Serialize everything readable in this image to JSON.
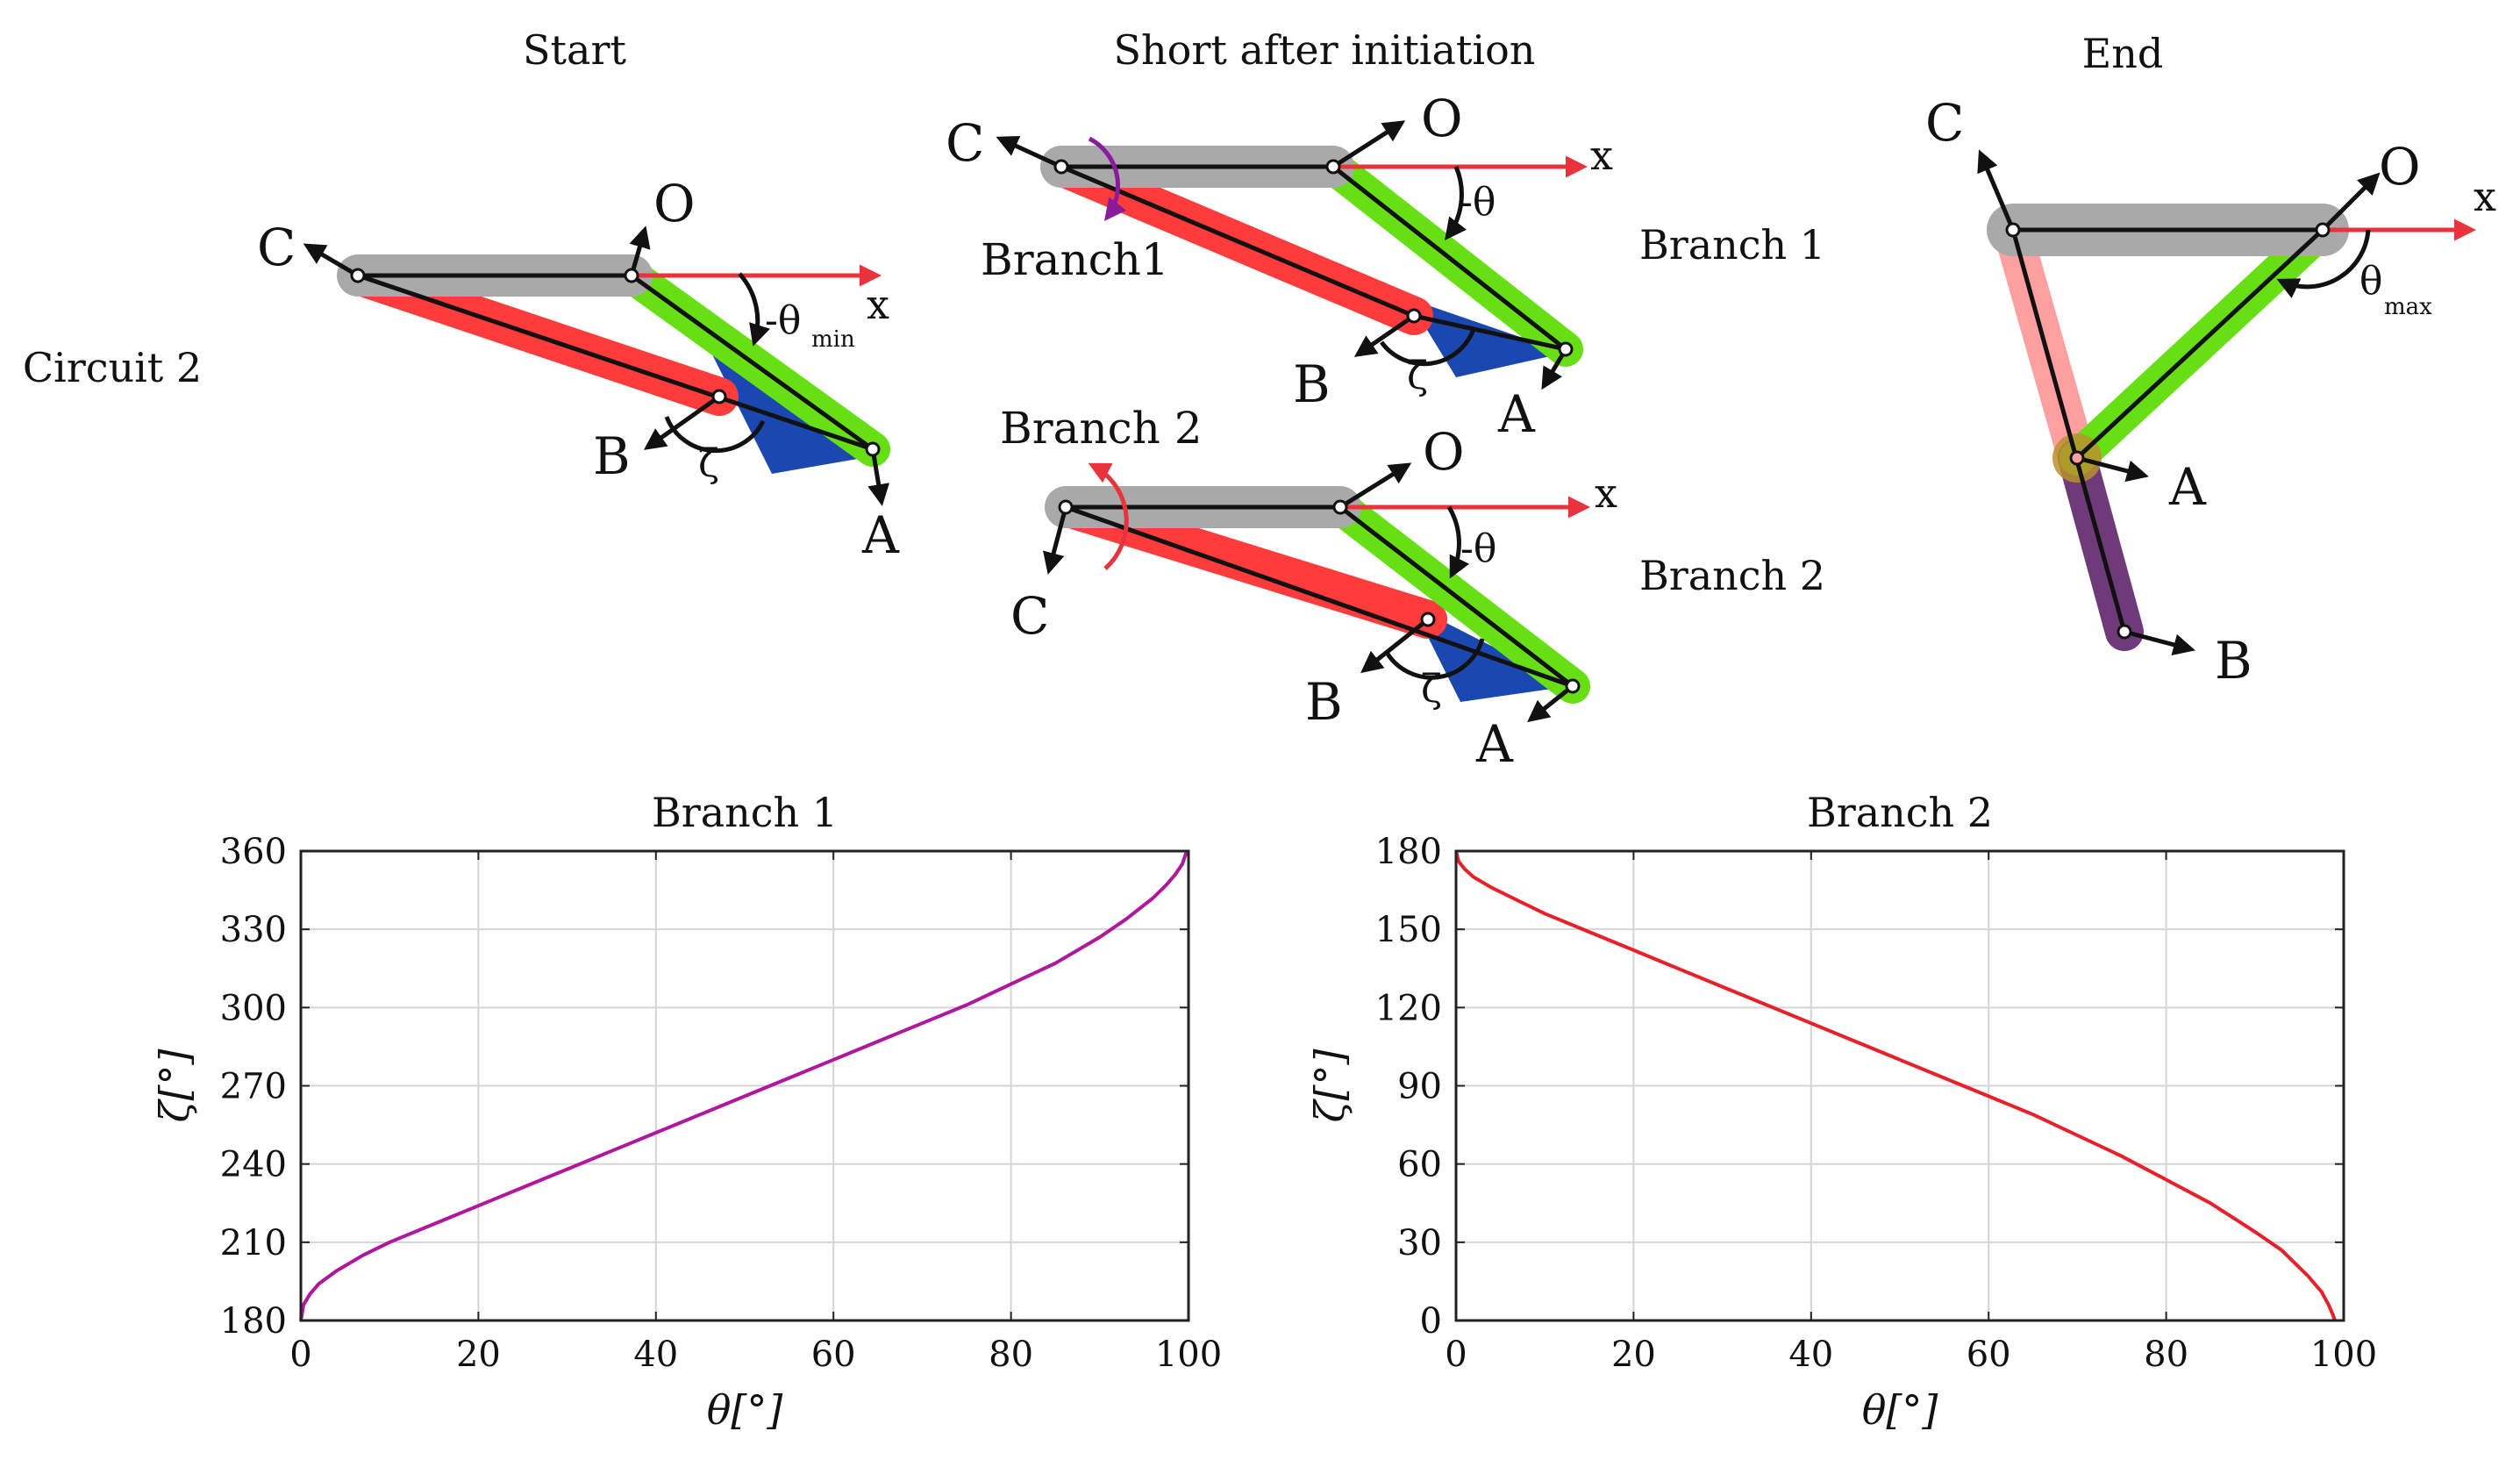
{
  "titles": {
    "start": "Start",
    "short": "Short after initiation",
    "end": "End"
  },
  "side_labels": {
    "circuit": "Circuit 2",
    "branch1": "Branch 1",
    "branch2": "Branch 2"
  },
  "annotations": {
    "branch1_arrow": "Branch1",
    "branch2_arrow": "Branch 2",
    "neg_theta": "-θ",
    "theta": "θ",
    "sub_min": "min",
    "sub_max": "max",
    "zeta": "ζ",
    "x_axis": "x"
  },
  "points": {
    "A": "A",
    "B": "B",
    "C": "C",
    "O": "O"
  },
  "colors": {
    "red_link": "#ff3b3b",
    "green_link": "#66e014",
    "gray_link": "#a9a9a9",
    "blue_wedge": "#1a47b0",
    "axis_red": "#e8333d",
    "purple": "#8a1c9c",
    "pink_link": "#ff9f9f",
    "dark_purple": "#6f3a7a"
  },
  "chart_data": [
    {
      "type": "line",
      "title": "Branch 1",
      "xlabel": "θ[°]",
      "ylabel": "ζ[°]",
      "xlim": [
        0,
        100
      ],
      "ylim": [
        180,
        360
      ],
      "xticks": [
        0,
        20,
        40,
        60,
        80,
        100
      ],
      "yticks": [
        180,
        210,
        240,
        270,
        300,
        330,
        360
      ],
      "grid": true,
      "color": "#b0179d",
      "x": [
        0,
        0.3,
        1,
        2,
        4,
        7,
        10,
        15,
        20,
        25,
        30,
        35,
        40,
        45,
        50,
        55,
        60,
        65,
        70,
        75,
        80,
        85,
        90,
        93,
        96,
        97.5,
        98.5,
        99.3,
        99.7,
        100
      ],
      "y": [
        180,
        186,
        190,
        194,
        199,
        205,
        210,
        217,
        224,
        231,
        238,
        245,
        252,
        259,
        266,
        273,
        280,
        287,
        294,
        301,
        309,
        317,
        327,
        334,
        342,
        347,
        351,
        355,
        359,
        360
      ]
    },
    {
      "type": "line",
      "title": "Branch 2",
      "xlabel": "θ[°]",
      "ylabel": "ζ[°]",
      "xlim": [
        0,
        100
      ],
      "ylim": [
        0,
        180
      ],
      "xticks": [
        0,
        20,
        40,
        60,
        80,
        100
      ],
      "yticks": [
        0,
        30,
        60,
        90,
        120,
        150,
        180
      ],
      "grid": true,
      "color": "#e8202a",
      "x": [
        0,
        0.3,
        1,
        2,
        4,
        7,
        10,
        15,
        20,
        25,
        30,
        35,
        40,
        45,
        50,
        55,
        60,
        65,
        70,
        75,
        80,
        85,
        90,
        93,
        96,
        97.5,
        98.3,
        98.8,
        99
      ],
      "y": [
        180,
        176,
        173,
        170,
        166,
        161,
        156,
        149,
        142,
        135,
        128,
        121,
        114,
        107,
        100,
        93,
        86,
        79,
        71,
        63,
        54,
        45,
        34,
        27,
        17,
        11,
        6,
        2,
        0
      ]
    }
  ]
}
